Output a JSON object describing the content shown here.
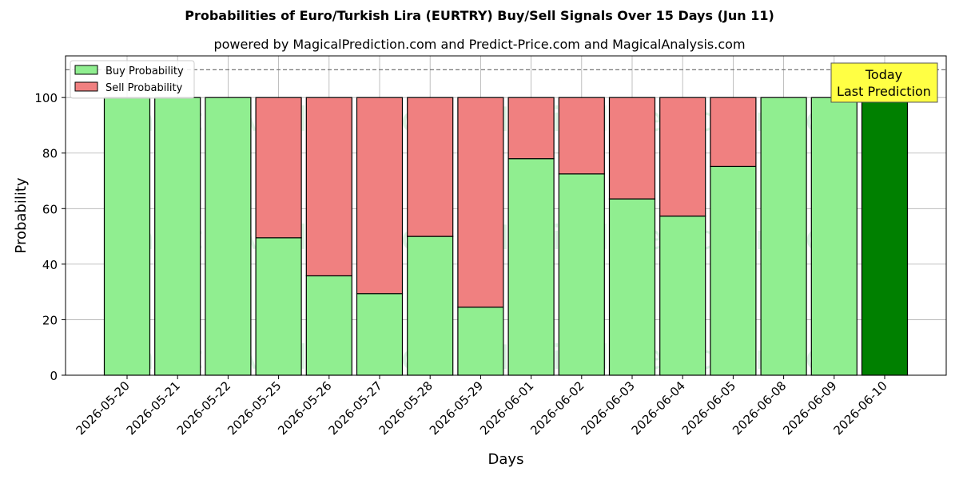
{
  "chart_data": {
    "type": "bar",
    "title": "Probabilities of Euro/Turkish Lira (EURTRY) Buy/Sell Signals Over 15 Days (Jun 11)",
    "subtitle": "powered by MagicalPrediction.com and Predict-Price.com and MagicalAnalysis.com",
    "xlabel": "Days",
    "ylabel": "Probability",
    "ylim": [
      0,
      115
    ],
    "yticks": [
      0,
      20,
      40,
      60,
      80,
      100
    ],
    "grid": true,
    "legend_position": "top-left",
    "reference_line": 110,
    "categories": [
      "2026-05-20",
      "2026-05-21",
      "2026-05-22",
      "2026-05-25",
      "2026-05-26",
      "2026-05-27",
      "2026-05-28",
      "2026-05-29",
      "2026-06-01",
      "2026-06-02",
      "2026-06-03",
      "2026-06-04",
      "2026-06-05",
      "2026-06-08",
      "2026-06-09",
      "2026-06-10"
    ],
    "series": [
      {
        "name": "Buy Probability",
        "color": "#90ee90",
        "values": [
          100,
          100,
          100,
          49.5,
          35.8,
          29.4,
          50,
          24.5,
          78,
          72.5,
          63.5,
          57.3,
          75.2,
          100,
          100,
          100
        ]
      },
      {
        "name": "Sell Probability",
        "color": "#f08080",
        "values": [
          0,
          0,
          0,
          50.5,
          64.2,
          70.6,
          50,
          75.5,
          22,
          27.5,
          36.5,
          42.7,
          24.8,
          0,
          0,
          0
        ]
      }
    ],
    "highlight": {
      "index": 15,
      "color": "#008000",
      "annotation": [
        "Today",
        "Last Prediction"
      ]
    },
    "watermarks": [
      "MagicalAnalysis.com",
      "MagicalPrediction.com"
    ]
  }
}
